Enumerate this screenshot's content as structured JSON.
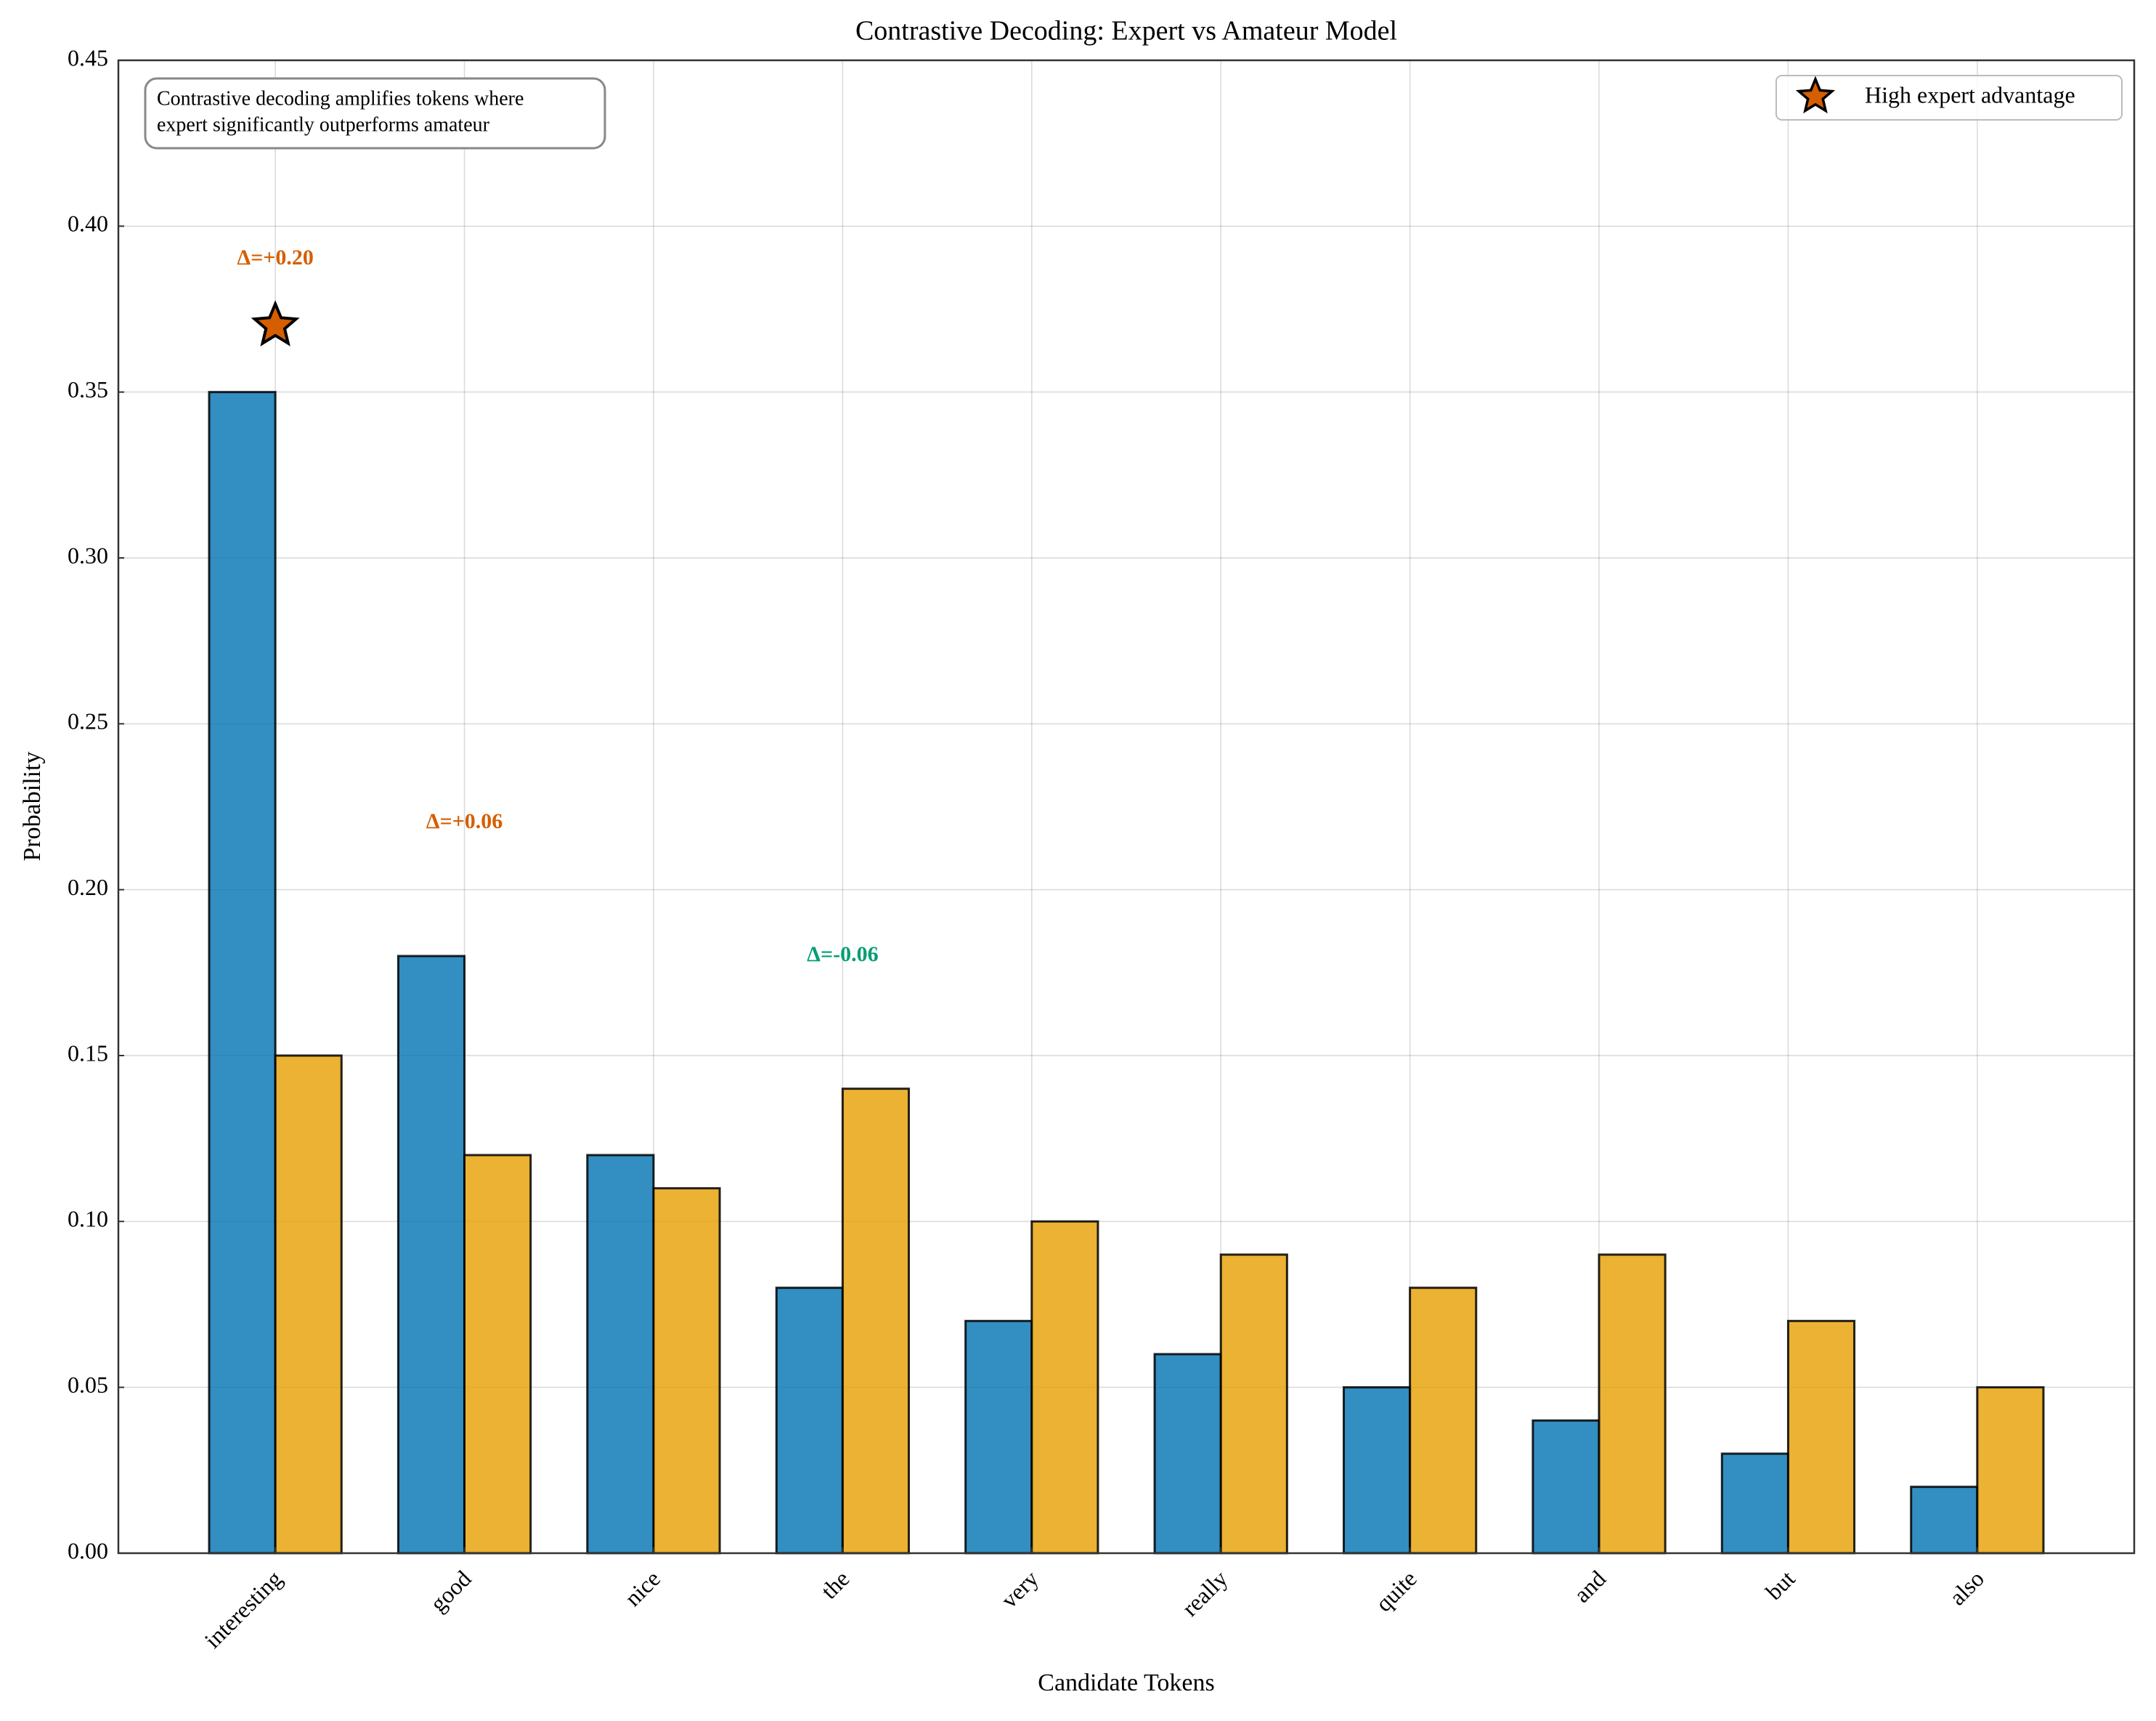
{
  "chart_data": {
    "type": "bar",
    "title": "Contrastive Decoding: Expert vs Amateur Model",
    "x_label": "Candidate Tokens",
    "y_label": "Probability",
    "categories": [
      "interesting",
      "good",
      "nice",
      "the",
      "very",
      "really",
      "quite",
      "and",
      "but",
      "also"
    ],
    "series": [
      {
        "color": "#0072B2",
        "values": [
          0.35,
          0.18,
          0.12,
          0.08,
          0.07,
          0.06,
          0.05,
          0.04,
          0.03,
          0.02
        ]
      },
      {
        "color": "#E69F00",
        "values": [
          0.15,
          0.12,
          0.11,
          0.14,
          0.1,
          0.09,
          0.08,
          0.09,
          0.07,
          0.05
        ]
      }
    ],
    "ylim": [
      0,
      0.45
    ],
    "yticks": [
      {
        "value": 0,
        "label": "0.00"
      },
      {
        "value": 0.05,
        "label": "0.05"
      },
      {
        "value": 0.1,
        "label": "0.10"
      },
      {
        "value": 0.15,
        "label": "0.15"
      },
      {
        "value": 0.2,
        "label": "0.20"
      },
      {
        "value": 0.25,
        "label": "0.25"
      },
      {
        "value": 0.3,
        "label": "0.30"
      },
      {
        "value": 0.35,
        "label": "0.35"
      },
      {
        "value": 0.4,
        "label": "0.40"
      },
      {
        "value": 0.45,
        "label": "0.45"
      }
    ],
    "grid": true,
    "legend": "upper right",
    "highlight": {
      "name": "High expert advantage",
      "category": "interesting",
      "color": "#D55E00"
    },
    "annotations": [
      {
        "text": "Δ=+0.20",
        "category": "interesting",
        "color": "#D55E00"
      },
      {
        "text": "Δ=+0.06",
        "category": "good",
        "color": "#D55E00"
      },
      {
        "text": "Δ=-0.06",
        "category": "the",
        "color": "#009E73"
      }
    ],
    "note": [
      "Contrastive decoding amplifies tokens where",
      "expert significantly outperforms amateur"
    ]
  }
}
